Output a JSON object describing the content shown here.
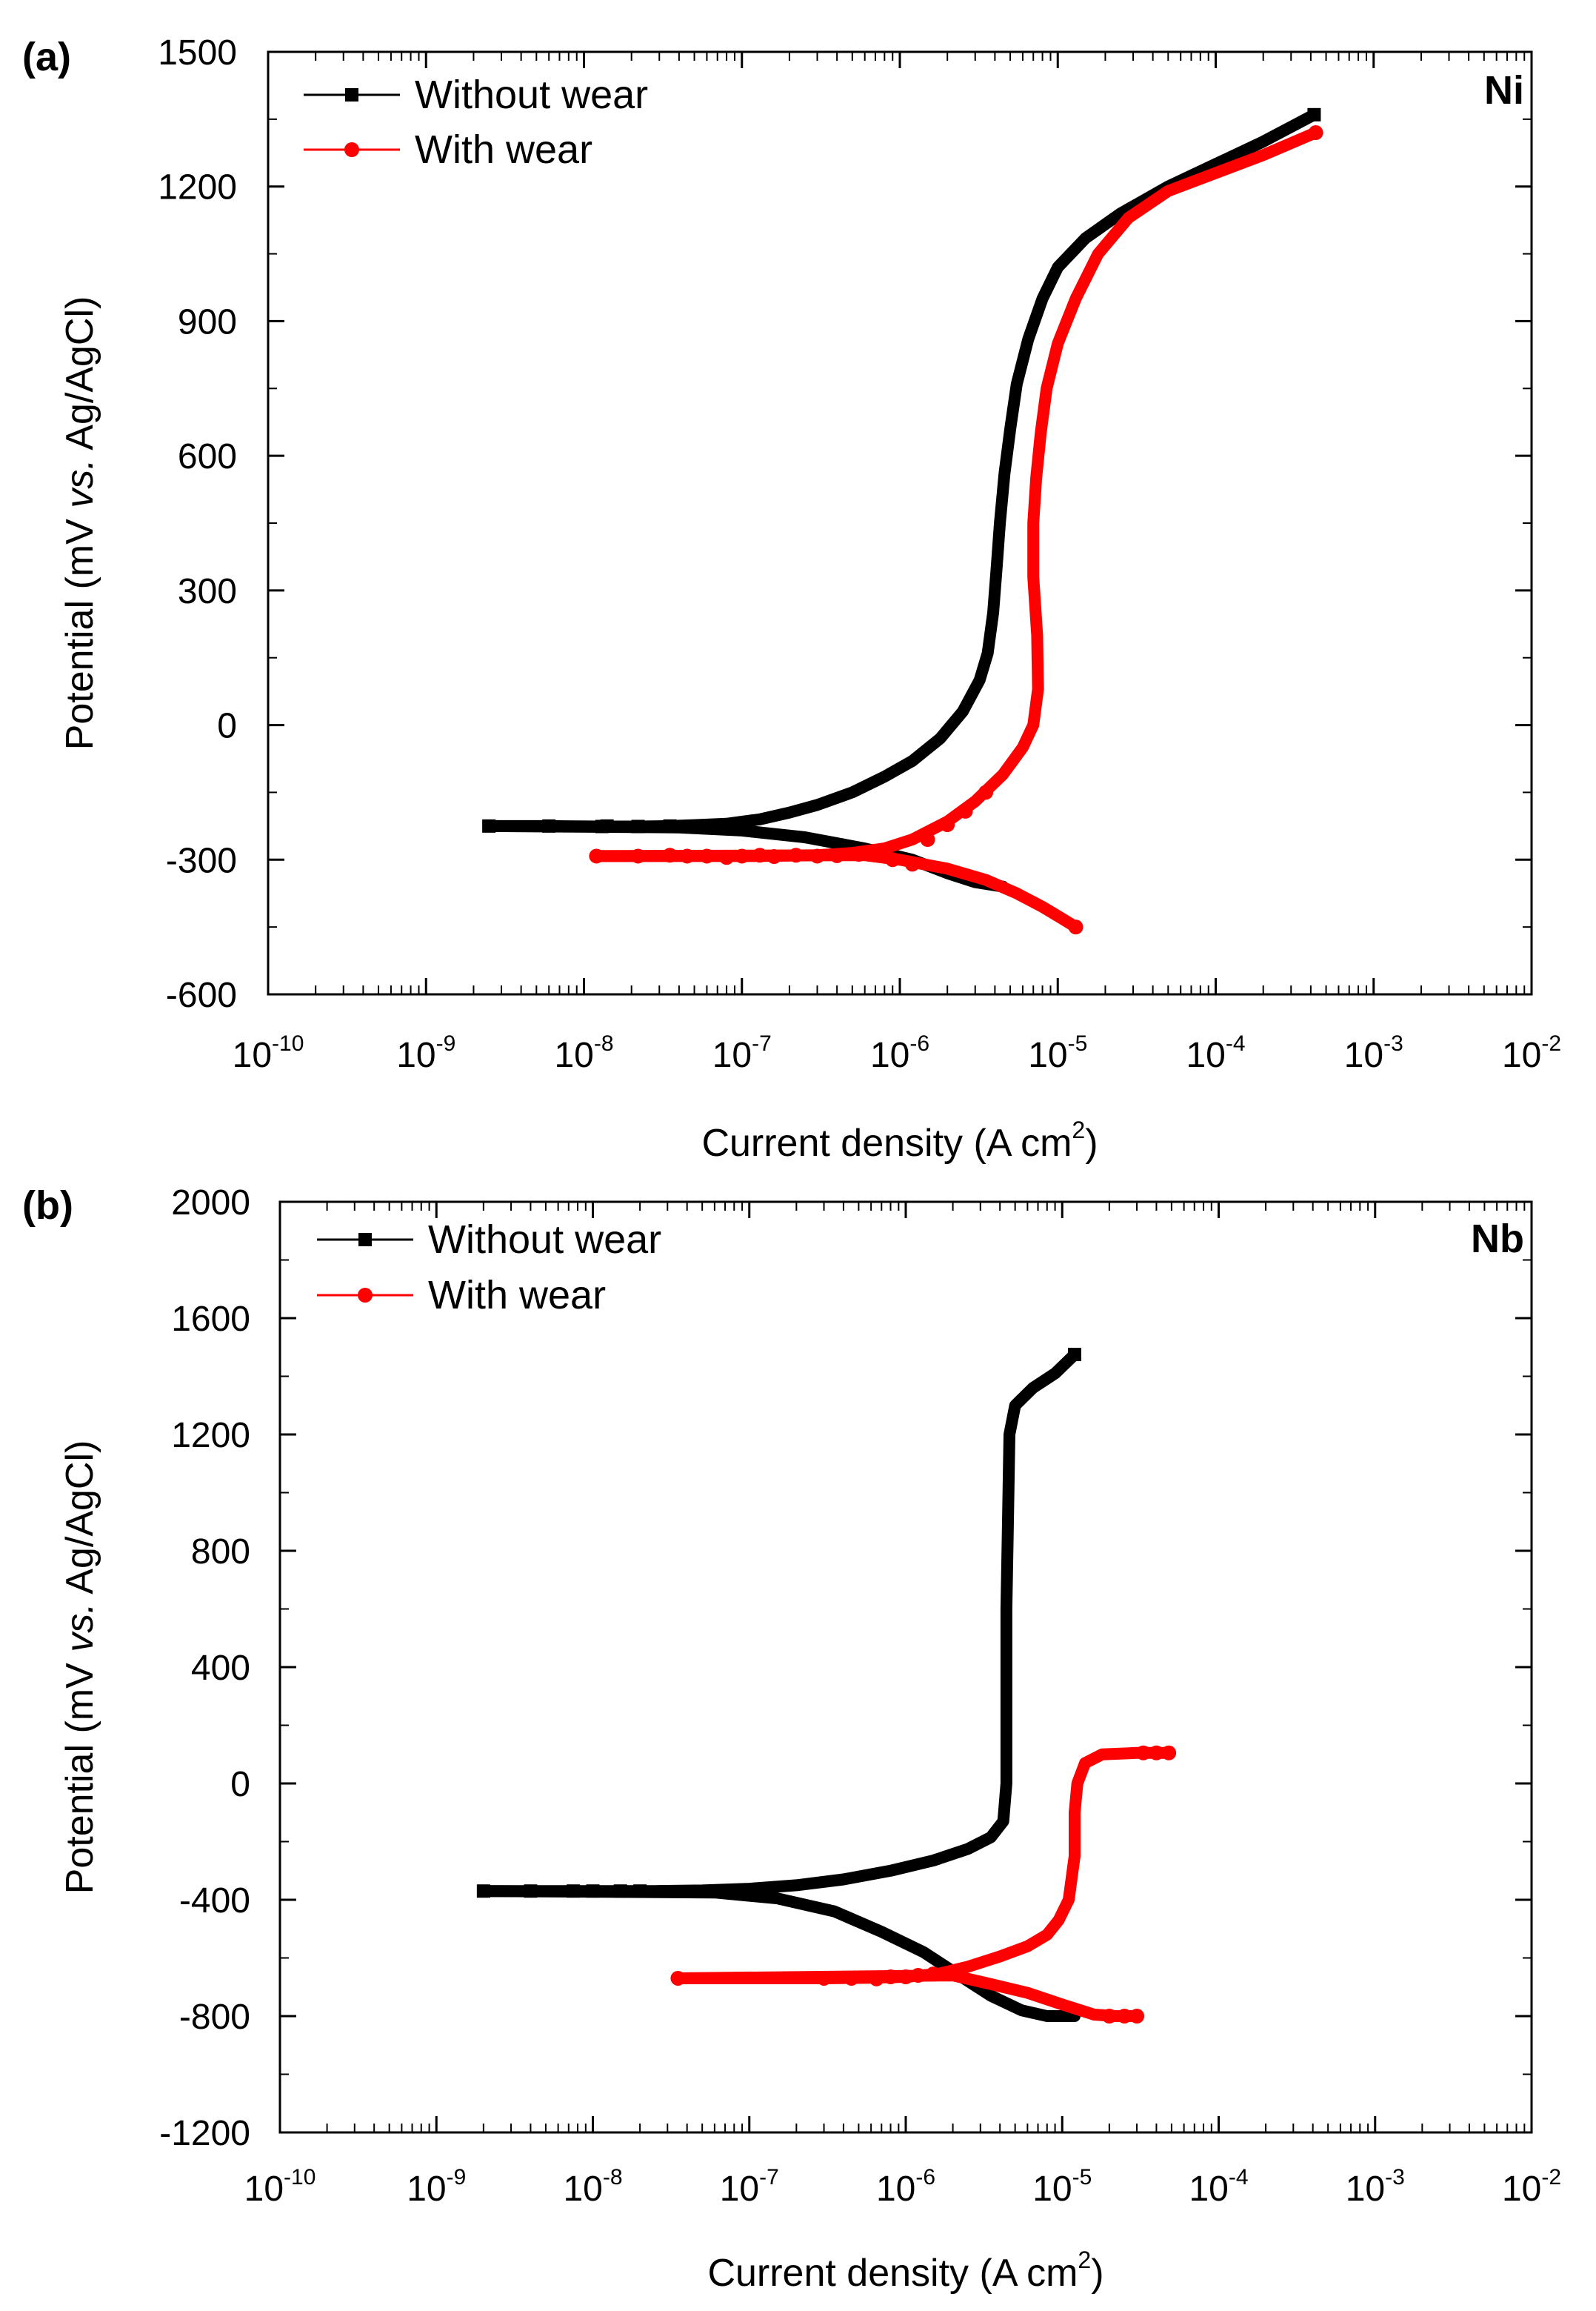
{
  "colors": {
    "without_wear": "#000000",
    "with_wear": "#ff0000"
  },
  "chart_data": [
    {
      "type": "line",
      "panel_label": "(a)",
      "metal_label": "Ni",
      "xlabel": "Current density (A cm",
      "xlabel_sup": "2",
      "xlabel_end": ")",
      "ylabel_pre": "Potential (mV ",
      "ylabel_italic": "vs.",
      "ylabel_post": " Ag/AgCl)",
      "x_scale": "log",
      "xlim": [
        1e-10,
        0.01
      ],
      "ylim": [
        -600,
        1500
      ],
      "x_ticks": [
        {
          "base": "10",
          "exp": "-10"
        },
        {
          "base": "10",
          "exp": "-9"
        },
        {
          "base": "10",
          "exp": "-8"
        },
        {
          "base": "10",
          "exp": "-7"
        },
        {
          "base": "10",
          "exp": "-6"
        },
        {
          "base": "10",
          "exp": "-5"
        },
        {
          "base": "10",
          "exp": "-4"
        },
        {
          "base": "10",
          "exp": "-3"
        },
        {
          "base": "10",
          "exp": "-2"
        }
      ],
      "y_ticks": [
        "-600",
        "-300",
        "0",
        "300",
        "600",
        "900",
        "1200",
        "1500"
      ],
      "y_tick_values": [
        -600,
        -300,
        0,
        300,
        600,
        900,
        1200,
        1500
      ],
      "legend": {
        "position": "top-left",
        "entries": [
          "Without wear",
          "With wear"
        ]
      },
      "series": [
        {
          "name": "Without wear",
          "marker": "square",
          "points": [
            [
              2.5e-09,
              -225
            ],
            [
              6e-09,
              -225
            ],
            [
              1.3e-08,
              -226
            ],
            [
              2.2e-08,
              -226
            ],
            [
              3.5e-08,
              -225
            ],
            [
              5e-08,
              -223
            ],
            [
              8e-08,
              -220
            ],
            [
              1.3e-07,
              -210
            ],
            [
              2e-07,
              -195
            ],
            [
              3e-07,
              -178
            ],
            [
              5e-07,
              -150
            ],
            [
              8e-07,
              -115
            ],
            [
              1.2e-06,
              -80
            ],
            [
              1.8e-06,
              -30
            ],
            [
              2.5e-06,
              30
            ],
            [
              3.2e-06,
              100
            ],
            [
              3.6e-06,
              160
            ],
            [
              3.9e-06,
              250
            ],
            [
              4.1e-06,
              350
            ],
            [
              4.3e-06,
              450
            ],
            [
              4.6e-06,
              560
            ],
            [
              5e-06,
              660
            ],
            [
              5.5e-06,
              760
            ],
            [
              6.5e-06,
              860
            ],
            [
              8e-06,
              950
            ],
            [
              1e-05,
              1020
            ],
            [
              1.5e-05,
              1085
            ],
            [
              2.5e-05,
              1140
            ],
            [
              5e-05,
              1200
            ],
            [
              0.0001,
              1250
            ],
            [
              0.0002,
              1300
            ],
            [
              0.00042,
              1360
            ],
            [
              4e-08,
              -228
            ],
            [
              1e-07,
              -235
            ],
            [
              2.5e-07,
              -250
            ],
            [
              6e-07,
              -275
            ],
            [
              1.2e-06,
              -300
            ],
            [
              2e-06,
              -330
            ],
            [
              3e-06,
              -350
            ],
            [
              4.5e-06,
              -360
            ]
          ],
          "markers_at": [
            [
              2.5e-09,
              -225
            ],
            [
              6e-09,
              -225
            ],
            [
              1.3e-08,
              -226
            ],
            [
              1.4e-08,
              -225
            ],
            [
              2.2e-08,
              -226
            ],
            [
              3.5e-08,
              -225
            ],
            [
              0.00042,
              1360
            ]
          ]
        },
        {
          "name": "With wear",
          "marker": "circle",
          "points": [
            [
              1.2e-08,
              -292
            ],
            [
              2e-08,
              -292
            ],
            [
              3.5e-08,
              -292
            ],
            [
              5e-08,
              -292
            ],
            [
              8e-08,
              -292
            ],
            [
              1.2e-07,
              -292
            ],
            [
              2e-07,
              -291
            ],
            [
              3e-07,
              -290
            ],
            [
              5e-07,
              -285
            ],
            [
              8e-07,
              -275
            ],
            [
              1.2e-06,
              -255
            ],
            [
              2e-06,
              -215
            ],
            [
              3e-06,
              -170
            ],
            [
              4.5e-06,
              -110
            ],
            [
              6e-06,
              -50
            ],
            [
              7e-06,
              0
            ],
            [
              7.5e-06,
              80
            ],
            [
              7.4e-06,
              200
            ],
            [
              7e-06,
              330
            ],
            [
              7e-06,
              450
            ],
            [
              7.3e-06,
              550
            ],
            [
              7.8e-06,
              650
            ],
            [
              8.5e-06,
              750
            ],
            [
              1e-05,
              850
            ],
            [
              1.3e-05,
              950
            ],
            [
              1.8e-05,
              1050
            ],
            [
              2.8e-05,
              1130
            ],
            [
              5e-05,
              1190
            ],
            [
              0.0001,
              1230
            ],
            [
              0.0002,
              1270
            ],
            [
              0.00043,
              1320
            ],
            [
              6e-07,
              -290
            ],
            [
              1e-06,
              -300
            ],
            [
              2e-06,
              -320
            ],
            [
              3.5e-06,
              -345
            ],
            [
              5.5e-06,
              -375
            ],
            [
              8e-06,
              -405
            ],
            [
              1.05e-05,
              -430
            ],
            [
              1.3e-05,
              -450
            ]
          ],
          "markers_at": [
            [
              1.2e-08,
              -292
            ],
            [
              2.2e-08,
              -292
            ],
            [
              3.5e-08,
              -290
            ],
            [
              4.5e-08,
              -292
            ],
            [
              6e-08,
              -292
            ],
            [
              8e-08,
              -295
            ],
            [
              1e-07,
              -292
            ],
            [
              1.3e-07,
              -290
            ],
            [
              1.6e-07,
              -293
            ],
            [
              2.2e-07,
              -290
            ],
            [
              3e-07,
              -292
            ],
            [
              4e-07,
              -291
            ],
            [
              5.5e-07,
              -288
            ],
            [
              7e-07,
              -288
            ],
            [
              9e-07,
              -300
            ],
            [
              1.2e-06,
              -310
            ],
            [
              1.5e-06,
              -255
            ],
            [
              2e-06,
              -222
            ],
            [
              2.6e-06,
              -192
            ],
            [
              3.5e-06,
              -150
            ],
            [
              1.3e-05,
              -450
            ],
            [
              0.00043,
              1320
            ]
          ]
        }
      ]
    },
    {
      "type": "line",
      "panel_label": "(b)",
      "metal_label": "Nb",
      "xlabel": "Current density (A cm",
      "xlabel_sup": "2",
      "xlabel_end": ")",
      "ylabel_pre": "Potential (mV ",
      "ylabel_italic": "vs.",
      "ylabel_post": " Ag/AgCl)",
      "x_scale": "log",
      "xlim": [
        1e-10,
        0.01
      ],
      "ylim": [
        -1200,
        2000
      ],
      "x_ticks": [
        {
          "base": "10",
          "exp": "-10"
        },
        {
          "base": "10",
          "exp": "-9"
        },
        {
          "base": "10",
          "exp": "-8"
        },
        {
          "base": "10",
          "exp": "-7"
        },
        {
          "base": "10",
          "exp": "-6"
        },
        {
          "base": "10",
          "exp": "-5"
        },
        {
          "base": "10",
          "exp": "-4"
        },
        {
          "base": "10",
          "exp": "-3"
        },
        {
          "base": "10",
          "exp": "-2"
        }
      ],
      "y_ticks": [
        "-1200",
        "-800",
        "-400",
        "0",
        "400",
        "800",
        "1200",
        "1600",
        "2000"
      ],
      "y_tick_values": [
        -1200,
        -800,
        -400,
        0,
        400,
        800,
        1200,
        1600,
        2000
      ],
      "legend": {
        "position": "top-left",
        "entries": [
          "Without wear",
          "With wear"
        ]
      },
      "series": [
        {
          "name": "Without wear",
          "marker": "square",
          "points": [
            [
              2e-09,
              -370
            ],
            [
              4e-09,
              -370
            ],
            [
              7.5e-09,
              -370
            ],
            [
              1e-08,
              -370
            ],
            [
              1.5e-08,
              -370
            ],
            [
              2.5e-08,
              -370
            ],
            [
              5e-08,
              -368
            ],
            [
              1e-07,
              -362
            ],
            [
              2e-07,
              -350
            ],
            [
              4e-07,
              -330
            ],
            [
              8e-07,
              -300
            ],
            [
              1.5e-06,
              -265
            ],
            [
              2.5e-06,
              -225
            ],
            [
              3.5e-06,
              -185
            ],
            [
              4.2e-06,
              -130
            ],
            [
              4.4e-06,
              0
            ],
            [
              4.4e-06,
              300
            ],
            [
              4.4e-06,
              600
            ],
            [
              4.5e-06,
              900
            ],
            [
              4.6e-06,
              1200
            ],
            [
              5e-06,
              1300
            ],
            [
              6.5e-06,
              1360
            ],
            [
              9e-06,
              1410
            ],
            [
              1.2e-05,
              1475
            ],
            [
              6e-08,
              -375
            ],
            [
              1.5e-07,
              -395
            ],
            [
              3.5e-07,
              -440
            ],
            [
              7e-07,
              -510
            ],
            [
              1.3e-06,
              -580
            ],
            [
              2.2e-06,
              -660
            ],
            [
              3.5e-06,
              -730
            ],
            [
              5.5e-06,
              -780
            ],
            [
              8e-06,
              -800
            ],
            [
              1.2e-05,
              -800
            ]
          ],
          "markers_at": [
            [
              2e-09,
              -370
            ],
            [
              4e-09,
              -370
            ],
            [
              7.5e-09,
              -370
            ],
            [
              1e-08,
              -370
            ],
            [
              1.5e-08,
              -370
            ],
            [
              2e-08,
              -370
            ],
            [
              1.2e-05,
              1475
            ]
          ]
        },
        {
          "name": "With wear",
          "marker": "circle",
          "points": [
            [
              3.5e-08,
              -670
            ],
            [
              3e-07,
              -670
            ],
            [
              6e-07,
              -668
            ],
            [
              1e-06,
              -665
            ],
            [
              1.6e-06,
              -655
            ],
            [
              2.5e-06,
              -630
            ],
            [
              4e-06,
              -595
            ],
            [
              6e-06,
              -560
            ],
            [
              8e-06,
              -520
            ],
            [
              9.5e-06,
              -470
            ],
            [
              1.1e-05,
              -400
            ],
            [
              1.2e-05,
              -250
            ],
            [
              1.2e-05,
              -100
            ],
            [
              1.25e-05,
              0
            ],
            [
              1.4e-05,
              70
            ],
            [
              1.8e-05,
              100
            ],
            [
              3e-05,
              105
            ],
            [
              4.8e-05,
              105
            ],
            [
              2e-06,
              -660
            ],
            [
              3.5e-06,
              -690
            ],
            [
              6e-06,
              -720
            ],
            [
              1e-05,
              -760
            ],
            [
              1.6e-05,
              -795
            ],
            [
              2.2e-05,
              -800
            ],
            [
              3e-05,
              -800
            ]
          ],
          "markers_at": [
            [
              3.5e-08,
              -670
            ],
            [
              3e-07,
              -670
            ],
            [
              4.5e-07,
              -670
            ],
            [
              6.5e-07,
              -672
            ],
            [
              8e-07,
              -665
            ],
            [
              1e-06,
              -665
            ],
            [
              1.2e-06,
              -660
            ],
            [
              1.5e-06,
              -655
            ],
            [
              3e-05,
              -800
            ],
            [
              2.5e-05,
              -800
            ],
            [
              2e-05,
              -800
            ],
            [
              4.8e-05,
              105
            ],
            [
              4e-05,
              105
            ],
            [
              3.3e-05,
              105
            ]
          ]
        }
      ]
    }
  ]
}
